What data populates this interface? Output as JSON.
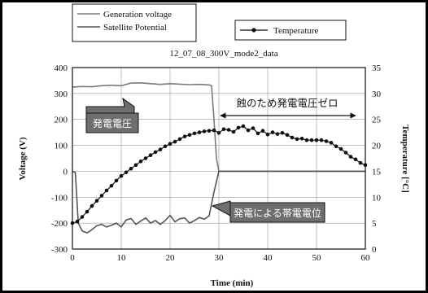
{
  "chart_data": {
    "type": "line",
    "title": "12_07_08_300V_mode2_data",
    "xlabel": "Time (min)",
    "ylabel_left": "Voltage (V)",
    "ylabel_right": "Temperature [°C]",
    "xlim": [
      0,
      60
    ],
    "xticks": [
      "0",
      "10",
      "20",
      "30",
      "40",
      "50",
      "60"
    ],
    "ylim_left": [
      -300,
      400
    ],
    "yticks_left": [
      "400",
      "300",
      "200",
      "100",
      "0",
      "-100",
      "-200",
      "-300"
    ],
    "ylim_right": [
      0,
      35
    ],
    "yticks_right": [
      "35",
      "30",
      "25",
      "20",
      "15",
      "10",
      "5",
      "0"
    ],
    "grid": true,
    "legend": [
      {
        "label": "Generation voltage",
        "marker": "none"
      },
      {
        "label": "Satellite Potential",
        "marker": "none"
      },
      {
        "label": "Temperature",
        "marker": "circle"
      }
    ],
    "series": [
      {
        "name": "Generation voltage",
        "axis": "left",
        "color": "#7a7a7a",
        "points": [
          [
            0,
            325
          ],
          [
            2,
            327
          ],
          [
            4,
            326
          ],
          [
            6,
            330
          ],
          [
            8,
            332
          ],
          [
            10,
            330
          ],
          [
            12,
            340
          ],
          [
            14,
            341
          ],
          [
            16,
            338
          ],
          [
            18,
            335
          ],
          [
            20,
            338
          ],
          [
            22,
            336
          ],
          [
            24,
            334
          ],
          [
            26,
            335
          ],
          [
            28,
            333
          ],
          [
            28.5,
            330
          ],
          [
            29,
            200
          ],
          [
            29.5,
            50
          ],
          [
            30,
            0
          ],
          [
            35,
            0
          ],
          [
            40,
            0
          ],
          [
            45,
            0
          ],
          [
            50,
            0
          ],
          [
            55,
            0
          ],
          [
            60,
            0
          ]
        ]
      },
      {
        "name": "Satellite Potential",
        "axis": "left",
        "color": "#555555",
        "points": [
          [
            0,
            0
          ],
          [
            0.6,
            -5
          ],
          [
            1.2,
            -200
          ],
          [
            2,
            -230
          ],
          [
            3,
            -238
          ],
          [
            4,
            -225
          ],
          [
            5,
            -210
          ],
          [
            6,
            -205
          ],
          [
            7,
            -215
          ],
          [
            8,
            -208
          ],
          [
            9,
            -200
          ],
          [
            10,
            -215
          ],
          [
            11,
            -188
          ],
          [
            12,
            -182
          ],
          [
            13,
            -205
          ],
          [
            14,
            -192
          ],
          [
            15,
            -180
          ],
          [
            16,
            -200
          ],
          [
            17,
            -190
          ],
          [
            18,
            -205
          ],
          [
            19,
            -190
          ],
          [
            20,
            -170
          ],
          [
            21,
            -195
          ],
          [
            22,
            -183
          ],
          [
            23,
            -180
          ],
          [
            24,
            -200
          ],
          [
            25,
            -190
          ],
          [
            26,
            -178
          ],
          [
            27,
            -185
          ],
          [
            28,
            -172
          ],
          [
            29,
            -80
          ],
          [
            29.5,
            -40
          ],
          [
            30,
            0
          ],
          [
            35,
            0
          ],
          [
            40,
            0
          ],
          [
            45,
            0
          ],
          [
            50,
            0
          ],
          [
            55,
            0
          ],
          [
            60,
            0
          ]
        ]
      },
      {
        "name": "Temperature",
        "axis": "right",
        "color": "#111111",
        "marker": "circle",
        "points": [
          [
            0,
            5
          ],
          [
            1,
            5.3
          ],
          [
            2,
            6.2
          ],
          [
            3,
            7.2
          ],
          [
            4,
            8.3
          ],
          [
            5,
            9.3
          ],
          [
            6,
            10.3
          ],
          [
            7,
            11.3
          ],
          [
            8,
            12.2
          ],
          [
            9,
            13.2
          ],
          [
            10,
            14.1
          ],
          [
            11,
            14.8
          ],
          [
            12,
            15.5
          ],
          [
            13,
            16.2
          ],
          [
            14,
            16.9
          ],
          [
            15,
            17.5
          ],
          [
            16,
            18.1
          ],
          [
            17,
            18.7
          ],
          [
            18,
            19.2
          ],
          [
            19,
            19.8
          ],
          [
            20,
            20.3
          ],
          [
            21,
            20.7
          ],
          [
            22,
            21.2
          ],
          [
            23,
            21.7
          ],
          [
            24,
            22
          ],
          [
            25,
            22.3
          ],
          [
            26,
            22.5
          ],
          [
            27,
            22.7
          ],
          [
            28,
            22.8
          ],
          [
            29,
            22.9
          ],
          [
            30,
            22.4
          ],
          [
            31,
            23.1
          ],
          [
            32,
            23
          ],
          [
            33,
            22.6
          ],
          [
            34,
            23.4
          ],
          [
            35,
            23.7
          ],
          [
            36,
            22.9
          ],
          [
            37,
            23.3
          ],
          [
            38,
            22.3
          ],
          [
            39,
            22.8
          ],
          [
            40,
            22.1
          ],
          [
            41,
            22.5
          ],
          [
            42,
            22.2
          ],
          [
            43,
            22.4
          ],
          [
            44,
            22
          ],
          [
            45,
            21.5
          ],
          [
            46,
            21.2
          ],
          [
            47,
            21.3
          ],
          [
            48,
            21
          ],
          [
            49,
            21
          ],
          [
            50,
            21
          ],
          [
            51,
            21
          ],
          [
            52,
            20.8
          ],
          [
            53,
            20.5
          ],
          [
            54,
            19.8
          ],
          [
            55,
            19.3
          ],
          [
            56,
            18.6
          ],
          [
            57,
            17.8
          ],
          [
            58,
            17.3
          ],
          [
            59,
            16.6
          ],
          [
            60,
            16.2
          ]
        ]
      }
    ],
    "annotations": {
      "generation_label": "発電電圧",
      "eclipse_label": "蝕のため発電電圧ゼロ",
      "charging_label": "発電による帯電電位"
    }
  }
}
